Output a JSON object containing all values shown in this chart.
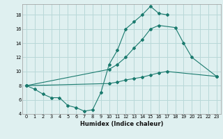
{
  "title": "",
  "xlabel": "Humidex (Indice chaleur)",
  "background_color": "#dff0f0",
  "grid_color": "#b8d8d8",
  "line_color": "#1a7a6e",
  "xlim": [
    -0.5,
    23.5
  ],
  "ylim": [
    4,
    19.5
  ],
  "yticks": [
    4,
    6,
    8,
    10,
    12,
    14,
    16,
    18
  ],
  "xticks": [
    0,
    1,
    2,
    3,
    4,
    5,
    6,
    7,
    8,
    9,
    10,
    11,
    12,
    13,
    14,
    15,
    16,
    17,
    18,
    19,
    20,
    21,
    22,
    23
  ],
  "curve1_x": [
    0,
    1,
    2,
    3,
    4,
    5,
    6,
    7,
    8,
    9,
    10,
    11,
    12,
    13,
    14,
    15,
    16,
    17
  ],
  "curve1_y": [
    8.0,
    7.5,
    6.8,
    6.3,
    6.3,
    5.2,
    4.9,
    4.4,
    4.6,
    7.0,
    11.0,
    13.0,
    16.0,
    17.0,
    18.0,
    19.2,
    18.2,
    18.0
  ],
  "curve2_x": [
    0,
    10,
    11,
    12,
    13,
    14,
    15,
    16,
    18,
    19,
    20,
    23
  ],
  "curve2_y": [
    8.0,
    10.3,
    11.0,
    12.0,
    13.3,
    14.5,
    16.0,
    16.5,
    16.2,
    14.0,
    12.0,
    9.3
  ],
  "curve3_x": [
    0,
    10,
    11,
    12,
    13,
    14,
    15,
    16,
    17,
    23
  ],
  "curve3_y": [
    8.0,
    8.3,
    8.5,
    8.8,
    9.0,
    9.2,
    9.5,
    9.8,
    10.0,
    9.3
  ]
}
